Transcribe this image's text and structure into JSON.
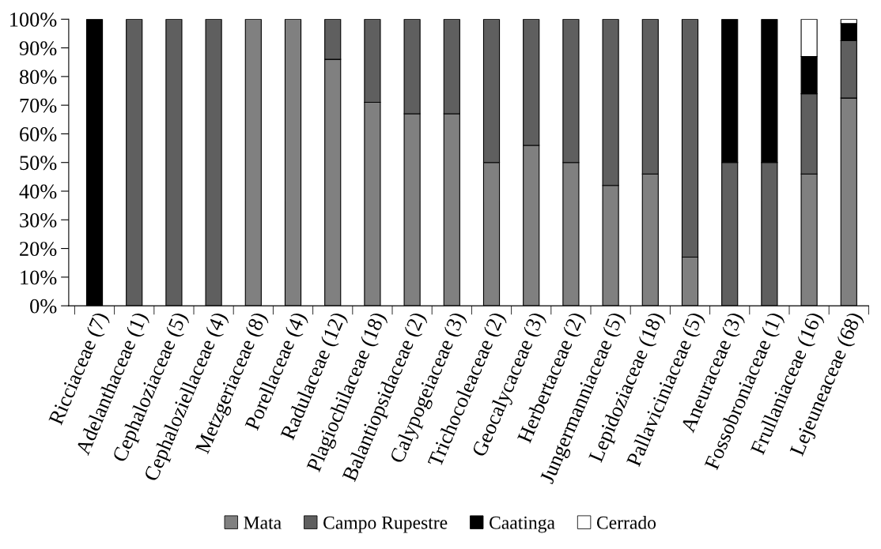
{
  "chart_data": {
    "type": "bar",
    "stacked": true,
    "legend": "bottom",
    "categories": [
      "Ricciaceae (7)",
      "Adelanthaceae (1)",
      "Cephaloziaceae (5)",
      "Cephaloziellaceae (4)",
      "Metzgeriaceae (8)",
      "Porellaceae (4)",
      "Radulaceae (12)",
      "Plagiochilaceae (18)",
      "Balantiopsidaceae (2)",
      "Calypogeiaceae (3)",
      "Trichocoleaceae (2)",
      "Geocalycaceae (3)",
      "Herbertaceae (2)",
      "Jungermanniaceae (5)",
      "Lepidoziaceae (18)",
      "Pallaviciniaceae (5)",
      "Aneuraceae (3)",
      "Fossobroniaceae (1)",
      "Frullaniaceae (16)",
      "Lejeuneaceae (68)"
    ],
    "series": [
      {
        "name": "Mata",
        "color": "#808080",
        "values": [
          0,
          0,
          0,
          0,
          100,
          100,
          86,
          71,
          67,
          67,
          50,
          56,
          50,
          42,
          46,
          17,
          0,
          0,
          46,
          72.5
        ]
      },
      {
        "name": "Campo Rupestre",
        "color": "#5f5f5f",
        "values": [
          0,
          100,
          100,
          100,
          0,
          0,
          14,
          29,
          33,
          33,
          50,
          44,
          50,
          58,
          54,
          83,
          50,
          50,
          28,
          20
        ]
      },
      {
        "name": "Caatinga",
        "color": "#000000",
        "values": [
          100,
          0,
          0,
          0,
          0,
          0,
          0,
          0,
          0,
          0,
          0,
          0,
          0,
          0,
          0,
          0,
          50,
          50,
          13,
          6
        ]
      },
      {
        "name": "Cerrado",
        "color": "#ffffff",
        "values": [
          0,
          0,
          0,
          0,
          0,
          0,
          0,
          0,
          0,
          0,
          0,
          0,
          0,
          0,
          0,
          0,
          0,
          0,
          13,
          1.5
        ]
      }
    ],
    "ylim": [
      0,
      100
    ],
    "yticks": [
      {
        "value": 0,
        "label": "0%"
      },
      {
        "value": 10,
        "label": "10%"
      },
      {
        "value": 20,
        "label": "20%"
      },
      {
        "value": 30,
        "label": "30%"
      },
      {
        "value": 40,
        "label": "40%"
      },
      {
        "value": 50,
        "label": "50%"
      },
      {
        "value": 60,
        "label": "60%"
      },
      {
        "value": 70,
        "label": "70%"
      },
      {
        "value": 80,
        "label": "80%"
      },
      {
        "value": 90,
        "label": "90%"
      },
      {
        "value": 100,
        "label": "100%"
      }
    ]
  }
}
